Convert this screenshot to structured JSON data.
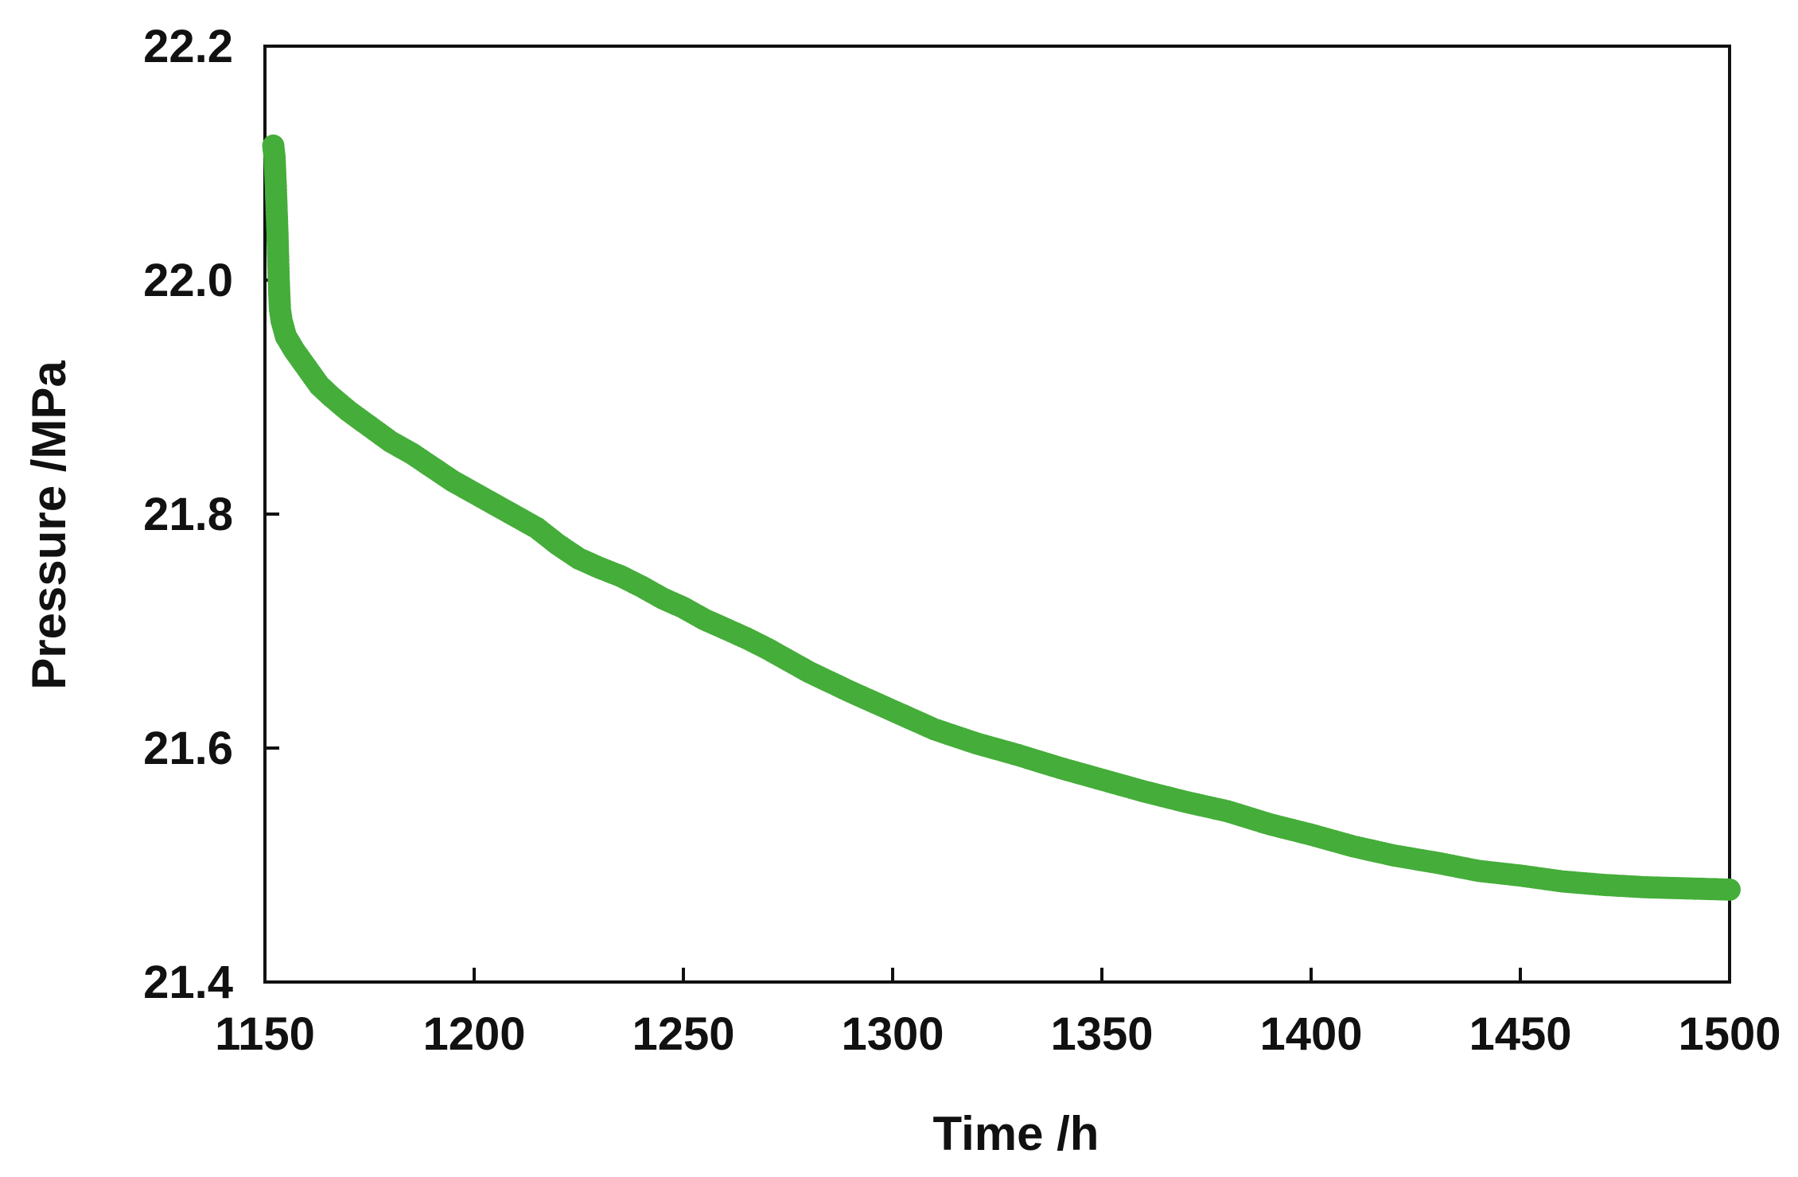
{
  "chart_data": {
    "type": "scatter",
    "title": "",
    "xlabel": "Time /h",
    "ylabel": "Pressure /MPa",
    "xlim": [
      1150,
      1500
    ],
    "ylim": [
      21.4,
      22.2
    ],
    "xticks": [
      "1150",
      "1200",
      "1250",
      "1300",
      "1350",
      "1400",
      "1450",
      "1500"
    ],
    "yticks": [
      "21.4",
      "21.6",
      "21.8",
      "22.0",
      "22.2"
    ],
    "grid": false,
    "legend": "none",
    "series_color": "#45ad3a",
    "series": [
      {
        "x": [
          1152,
          1152.3,
          1152.6,
          1152.8,
          1153,
          1153.3,
          1153.6,
          1154,
          1155,
          1157,
          1160,
          1163,
          1166,
          1170,
          1175,
          1180,
          1185,
          1190,
          1195,
          1200,
          1205,
          1210,
          1215,
          1220,
          1225,
          1230,
          1235,
          1240,
          1245,
          1250,
          1255,
          1260,
          1265,
          1270,
          1275,
          1280,
          1290,
          1300,
          1310,
          1320,
          1330,
          1340,
          1350,
          1360,
          1370,
          1380,
          1390,
          1400,
          1410,
          1420,
          1430,
          1440,
          1450,
          1460,
          1470,
          1480,
          1490,
          1500
        ],
        "y": [
          22.115,
          22.105,
          22.08,
          22.06,
          22.04,
          22.0,
          21.975,
          21.965,
          21.952,
          21.94,
          21.925,
          21.91,
          21.9,
          21.888,
          21.875,
          21.862,
          21.852,
          21.84,
          21.828,
          21.818,
          21.808,
          21.798,
          21.788,
          21.774,
          21.762,
          21.754,
          21.747,
          21.738,
          21.728,
          21.72,
          21.71,
          21.702,
          21.694,
          21.685,
          21.675,
          21.665,
          21.648,
          21.632,
          21.616,
          21.604,
          21.594,
          21.583,
          21.573,
          21.563,
          21.554,
          21.546,
          21.535,
          21.526,
          21.516,
          21.508,
          21.502,
          21.495,
          21.491,
          21.486,
          21.483,
          21.481,
          21.48,
          21.479
        ]
      }
    ]
  }
}
